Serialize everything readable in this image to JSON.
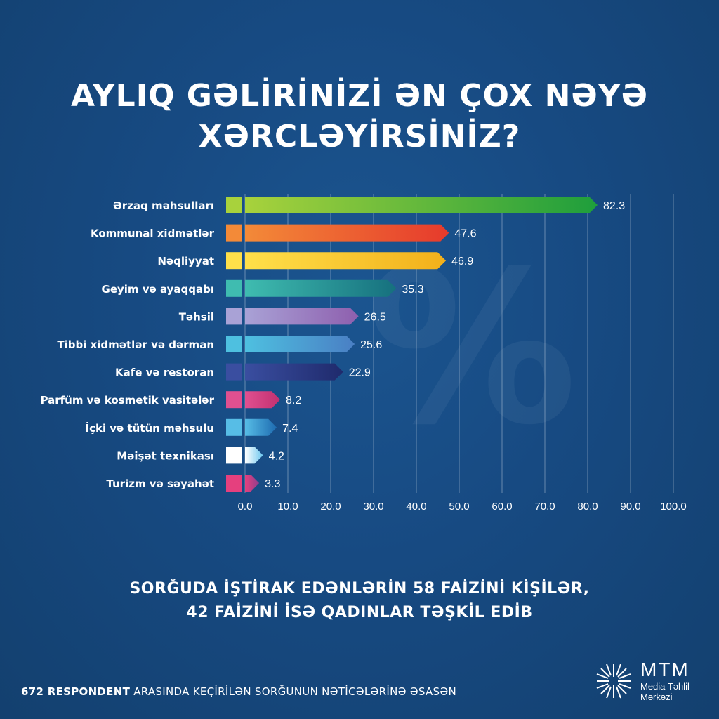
{
  "title": {
    "line1": "AYLIQ GƏLİRİNİZİ ƏN ÇOX NƏYƏ",
    "line2": "XƏRCLƏYİRSİNİZ?"
  },
  "watermark": "%",
  "chart_data": {
    "type": "bar",
    "orientation": "horizontal",
    "categories": [
      "Ərzaq məhsulları",
      "Kommunal xidmətlər",
      "Nəqliyyat",
      "Geyim və ayaqqabı",
      "Təhsil",
      "Tibbi xidmətlər və dərman",
      "Kafe və restoran",
      "Parfüm və kosmetik vasitələr",
      "İçki və tütün məhsulu",
      "Məişət texnikası",
      "Turizm və səyahət"
    ],
    "values": [
      82.3,
      47.6,
      46.9,
      35.3,
      26.5,
      25.6,
      22.9,
      8.2,
      7.4,
      4.2,
      3.3
    ],
    "value_labels": [
      "82.3",
      "47.6",
      "46.9",
      "35.3",
      "26.5",
      "25.6",
      "22.9",
      "8.2",
      "7.4",
      "4.2",
      "3.3"
    ],
    "bar_colors": [
      [
        "#a8d23c",
        "#1e9e3c"
      ],
      [
        "#f38a38",
        "#e63a2c"
      ],
      [
        "#ffe04a",
        "#f2b01a"
      ],
      [
        "#3fbcb0",
        "#16707e"
      ],
      [
        "#a9a2d6",
        "#8e5fae"
      ],
      [
        "#4ec0e0",
        "#4a7fc4"
      ],
      [
        "#3a4ea0",
        "#1f2a6c"
      ],
      [
        "#e05090",
        "#c23070"
      ],
      [
        "#57bde6",
        "#1e6bb0"
      ],
      [
        "#ffffff",
        "#6cc6ee"
      ],
      [
        "#e5407e",
        "#8e3e8e"
      ]
    ],
    "xlim": [
      0,
      100
    ],
    "xticks": [
      "0.0",
      "10.0",
      "20.0",
      "30.0",
      "40.0",
      "50.0",
      "60.0",
      "70.0",
      "80.0",
      "90.0",
      "100.0"
    ],
    "grid": true,
    "xlabel": "",
    "ylabel": ""
  },
  "subtitle": {
    "line1": "SORĞUDA İŞTİRAK EDƏNLƏRİN 58 FAİZİNİ KİŞİLƏR,",
    "line2": "42 FAİZİNİ İSƏ QADINLAR TƏŞKİL EDİB"
  },
  "footnote": {
    "bold": "672 RESPONDENT",
    "rest": " ARASINDA KEÇİRİLƏN SORĞUNUN NƏTİCƏLƏRİNƏ ƏSASƏN"
  },
  "logo": {
    "name": "MTM",
    "sub1": "Media Təhlil",
    "sub2": "Mərkəzi"
  }
}
